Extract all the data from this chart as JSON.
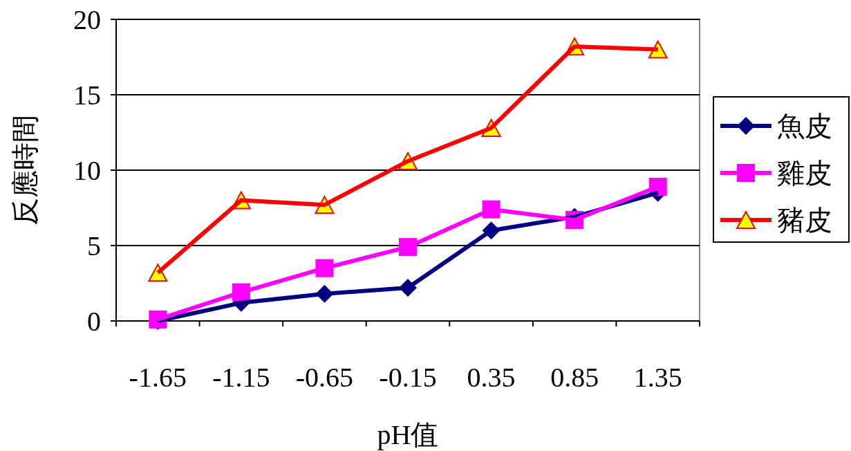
{
  "chart_data": {
    "type": "line",
    "xlabel": "pH值",
    "ylabel": "反應時間",
    "categories": [
      "-1.65",
      "-1.15",
      "-0.65",
      "-0.15",
      "0.35",
      "0.85",
      "1.35"
    ],
    "series": [
      {
        "name": "魚皮",
        "color": "#000080",
        "marker": "diamond",
        "values": [
          0,
          1.2,
          1.8,
          2.2,
          6.0,
          6.9,
          8.5
        ]
      },
      {
        "name": "雞皮",
        "color": "#ff00ff",
        "marker": "square",
        "values": [
          0.1,
          1.9,
          3.5,
          4.9,
          7.4,
          6.7,
          8.9
        ]
      },
      {
        "name": "豬皮",
        "color": "#ff0000",
        "marker": "triangle",
        "values": [
          3.2,
          8.0,
          7.7,
          10.6,
          12.8,
          18.2,
          18.0
        ]
      }
    ],
    "ylim": [
      0,
      20
    ],
    "yticks": [
      0,
      5,
      10,
      15,
      20
    ],
    "grid": "y",
    "legend": "right"
  }
}
